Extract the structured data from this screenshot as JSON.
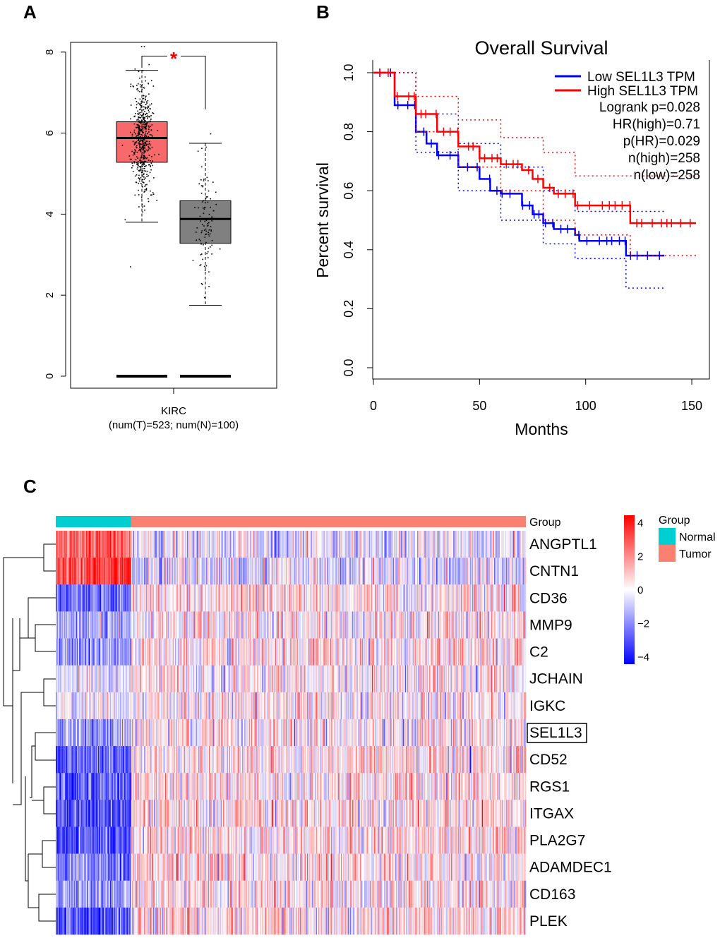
{
  "panels": {
    "a": "A",
    "b": "B",
    "c": "C"
  },
  "chart_data": [
    {
      "type": "box",
      "ylim": [
        0,
        8
      ],
      "yticks": [
        "0",
        "2",
        "4",
        "6",
        "8"
      ],
      "xlabel": "KIRC",
      "xlabel_sub": "(num(T)=523; num(N)=100)",
      "significance": "*",
      "groups": [
        {
          "color": "#f8696b",
          "n": 523,
          "whisker_high": 7.55,
          "q3": 6.28,
          "median": 5.88,
          "q1": 5.28,
          "whisker_low": 3.8
        },
        {
          "color": "#808080",
          "n": 100,
          "whisker_high": 5.75,
          "q3": 4.33,
          "median": 3.88,
          "q1": 3.28,
          "whisker_low": 1.75
        }
      ]
    },
    {
      "type": "line",
      "title": "Overall Survival",
      "xlabel": "Months",
      "ylabel": "Percent survival",
      "xlim": [
        0,
        155
      ],
      "ylim": [
        0,
        1
      ],
      "xticks": [
        "0",
        "50",
        "100",
        "150"
      ],
      "yticks": [
        "0.0",
        "0.2",
        "0.4",
        "0.6",
        "0.8",
        "1.0"
      ],
      "legend": {
        "placement": "top-right",
        "entries": [
          "Low SEL1L3 TPM",
          "High SEL1L3 TPM"
        ],
        "stats": [
          "Logrank p=0.028",
          "HR(high)=0.71",
          "p(HR)=0.029",
          "n(high)=258",
          "n(low)=258"
        ]
      },
      "series": [
        {
          "name": "Low SEL1L3 TPM",
          "color": "#0000ff",
          "x": [
            0,
            10,
            20,
            25,
            30,
            40,
            50,
            55,
            60,
            70,
            75,
            80,
            85,
            95,
            97,
            118,
            119,
            137
          ],
          "y": [
            1,
            0.89,
            0.8,
            0.76,
            0.72,
            0.68,
            0.64,
            0.6,
            0.59,
            0.55,
            0.52,
            0.49,
            0.47,
            0.45,
            0.43,
            0.43,
            0.38,
            0.38
          ],
          "ci_upper": {
            "x": [
              0,
              20,
              40,
              60,
              80,
              95,
              137
            ],
            "y": [
              1,
              0.86,
              0.76,
              0.68,
              0.6,
              0.53,
              0.53
            ]
          },
          "ci_lower": {
            "x": [
              0,
              20,
              40,
              60,
              80,
              95,
              118,
              119,
              137
            ],
            "y": [
              1,
              0.73,
              0.6,
              0.5,
              0.42,
              0.37,
              0.37,
              0.27,
              0.27
            ]
          }
        },
        {
          "name": "High SEL1L3 TPM",
          "color": "#ff0000",
          "x": [
            0,
            10,
            20,
            30,
            40,
            50,
            60,
            70,
            75,
            80,
            85,
            95,
            120,
            121,
            152
          ],
          "y": [
            1,
            0.92,
            0.86,
            0.8,
            0.75,
            0.71,
            0.69,
            0.67,
            0.64,
            0.61,
            0.59,
            0.55,
            0.55,
            0.49,
            0.49
          ],
          "ci_upper": {
            "x": [
              0,
              20,
              40,
              60,
              80,
              95,
              153
            ],
            "y": [
              1,
              0.92,
              0.84,
              0.78,
              0.73,
              0.65,
              0.65
            ]
          },
          "ci_lower": {
            "x": [
              0,
              20,
              40,
              60,
              80,
              95,
              120,
              121,
              152
            ],
            "y": [
              1,
              0.8,
              0.68,
              0.6,
              0.5,
              0.45,
              0.45,
              0.38,
              0.38
            ]
          }
        }
      ]
    },
    {
      "type": "heatmap",
      "annotation_label": "Group",
      "groups": [
        {
          "name": "Normal",
          "color": "#00ced1",
          "n": 100
        },
        {
          "name": "Tumor",
          "color": "#fa8072",
          "n": 523
        }
      ],
      "rows": [
        "ANGPTL1",
        "CNTN1",
        "CD36",
        "MMP9",
        "C2",
        "JCHAIN",
        "IGKC",
        "SEL1L3",
        "CD52",
        "RGS1",
        "ITGAX",
        "PLA2G7",
        "ADAMDEC1",
        "CD163",
        "PLEK"
      ],
      "highlighted_row": "SEL1L3",
      "normal_mean": [
        2.5,
        2.8,
        -2.2,
        -1.2,
        -1.5,
        -0.6,
        -0.4,
        -1.3,
        -2.4,
        -2.6,
        -2.8,
        -2.8,
        -2.0,
        -1.4,
        -2.6
      ],
      "color_scale": {
        "min": -4,
        "max": 4,
        "low": "#0000ff",
        "mid": "#ffffff",
        "high": "#ff0000",
        "ticks": [
          "4",
          "2",
          "0",
          "−2",
          "−4"
        ]
      },
      "legend_title": "Group"
    }
  ]
}
